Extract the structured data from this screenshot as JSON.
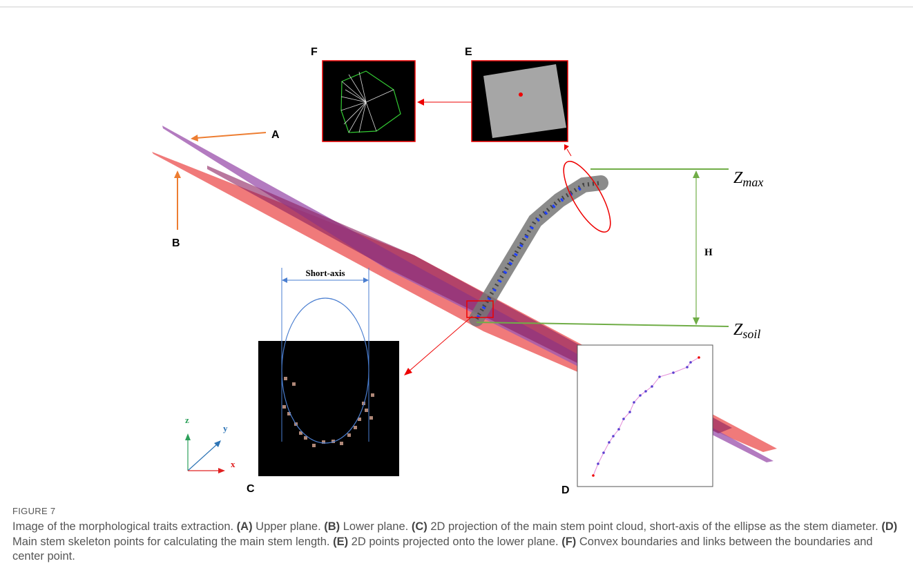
{
  "figure": {
    "panel_labels": [
      "A",
      "B",
      "C",
      "D",
      "E",
      "F"
    ],
    "annotations": {
      "short_axis": "Short-axis",
      "height": "H",
      "z_max": {
        "symbol": "Z",
        "subscript": "max"
      },
      "z_soil": {
        "symbol": "Z",
        "subscript": "soil"
      }
    },
    "axis_labels": {
      "x": "x",
      "y": "y",
      "z": "z"
    }
  },
  "caption": {
    "label": "FIGURE 7",
    "lead": "Image of the morphological traits extraction.",
    "items": [
      {
        "tag": "(A)",
        "text": "Upper plane."
      },
      {
        "tag": "(B)",
        "text": "Lower plane."
      },
      {
        "tag": "(C)",
        "text": "2D projection of the main stem point cloud, short-axis of the ellipse as the stem diameter."
      },
      {
        "tag": "(D)",
        "text": "Main stem skeleton points for calculating the main stem length."
      },
      {
        "tag": "(E)",
        "text": "2D points projected onto the lower plane."
      },
      {
        "tag": "(F)",
        "text": "Convex boundaries and links between the boundaries and center point."
      }
    ]
  }
}
